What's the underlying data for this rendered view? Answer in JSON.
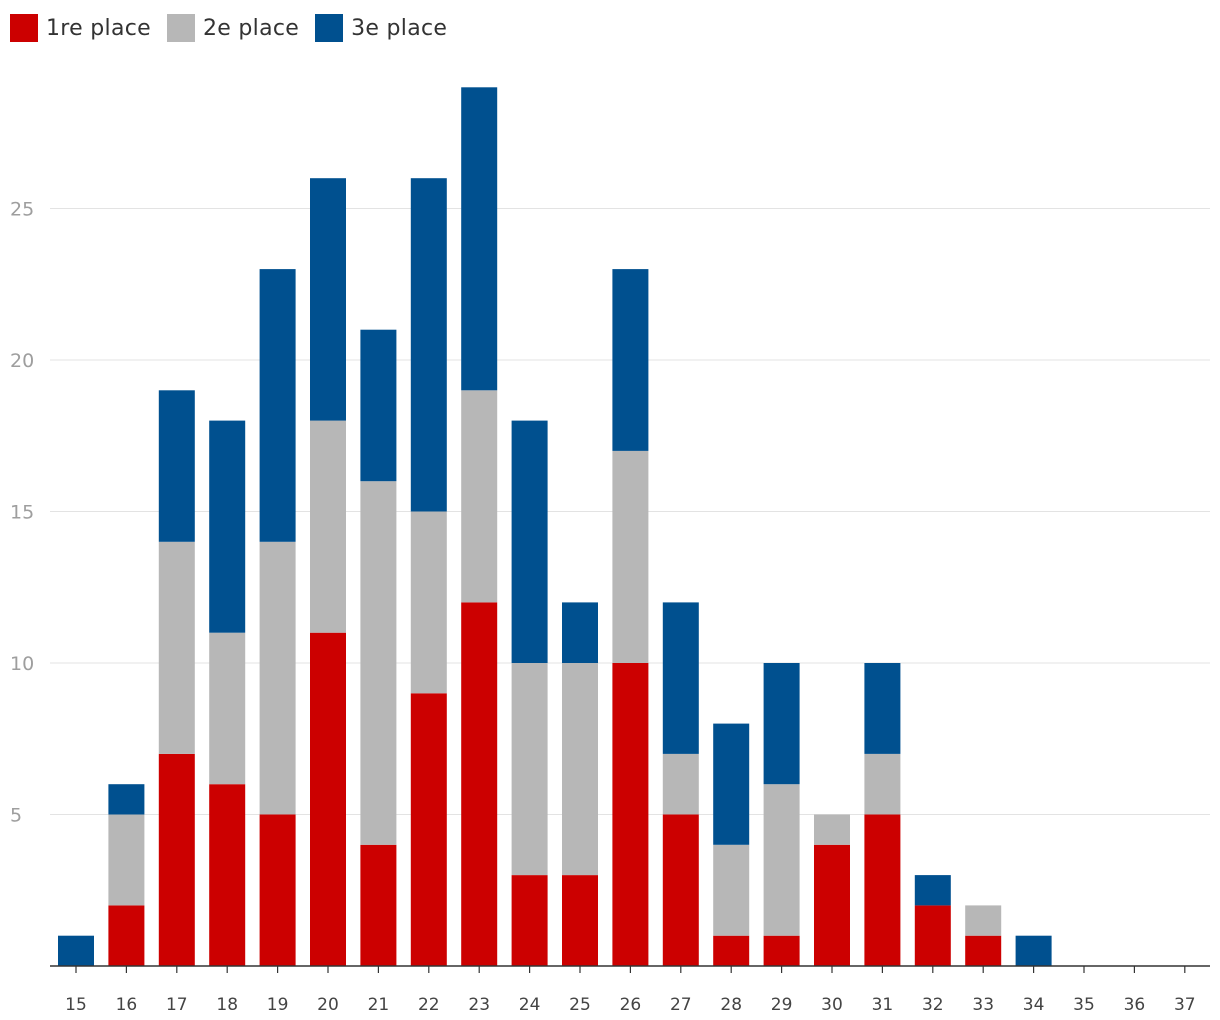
{
  "chart_data": {
    "type": "bar",
    "stacked": true,
    "categories": [
      "15",
      "16",
      "17",
      "18",
      "19",
      "20",
      "21",
      "22",
      "23",
      "24",
      "25",
      "26",
      "27",
      "28",
      "29",
      "30",
      "31",
      "32",
      "33",
      "34",
      "35",
      "36",
      "37"
    ],
    "series": [
      {
        "name": "1re place",
        "color": "#cc0000",
        "values": [
          0,
          2,
          7,
          6,
          5,
          11,
          4,
          9,
          12,
          3,
          3,
          10,
          5,
          1,
          1,
          4,
          5,
          2,
          1,
          0,
          0,
          0,
          0
        ]
      },
      {
        "name": "2e place",
        "color": "#b7b7b7",
        "values": [
          0,
          3,
          7,
          5,
          9,
          7,
          12,
          6,
          7,
          7,
          7,
          7,
          2,
          3,
          5,
          1,
          2,
          0,
          1,
          0,
          0,
          0,
          0
        ]
      },
      {
        "name": "3e place",
        "color": "#00508f",
        "values": [
          1,
          1,
          5,
          7,
          9,
          8,
          5,
          11,
          10,
          8,
          2,
          6,
          5,
          4,
          4,
          0,
          3,
          1,
          0,
          1,
          0,
          0,
          0
        ]
      }
    ],
    "yticks": [
      5,
      10,
      15,
      20,
      25
    ],
    "ylim": [
      0,
      29
    ],
    "grid": true,
    "legend": "top-left",
    "title": "",
    "xlabel": "",
    "ylabel": ""
  }
}
